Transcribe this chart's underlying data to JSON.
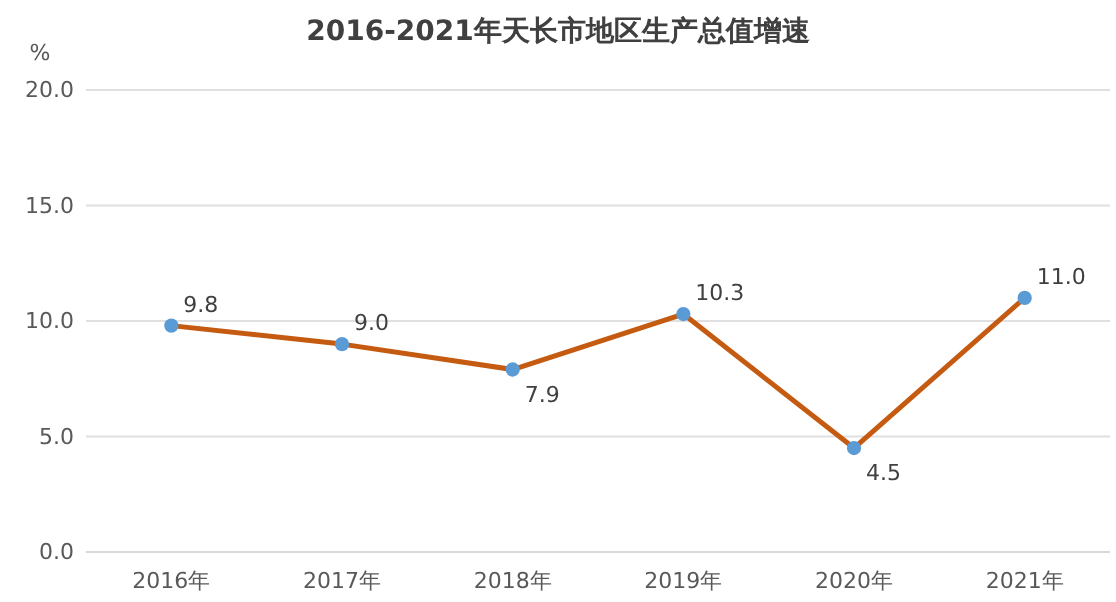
{
  "chart_data": {
    "type": "line",
    "title": "2016-2021年天长市地区生产总值增速",
    "ylabel": "%",
    "categories": [
      "2016年",
      "2017年",
      "2018年",
      "2019年",
      "2020年",
      "2021年"
    ],
    "series": [
      {
        "color": "#c55a11",
        "values": [
          9.8,
          9.0,
          7.9,
          10.3,
          4.5,
          11.0
        ],
        "value_labels": [
          "9.8",
          "9.0",
          "7.9",
          "10.3",
          "4.5",
          "11.0"
        ]
      }
    ],
    "ylim": [
      0,
      20
    ],
    "yticks": [
      {
        "value": 0,
        "label": "0.0"
      },
      {
        "value": 5,
        "label": "5.0"
      },
      {
        "value": 10,
        "label": "10.0"
      },
      {
        "value": 15,
        "label": "15.0"
      },
      {
        "value": 20,
        "label": "20.0"
      }
    ],
    "grid": "y",
    "marker": "circle",
    "line_style": "solid"
  }
}
